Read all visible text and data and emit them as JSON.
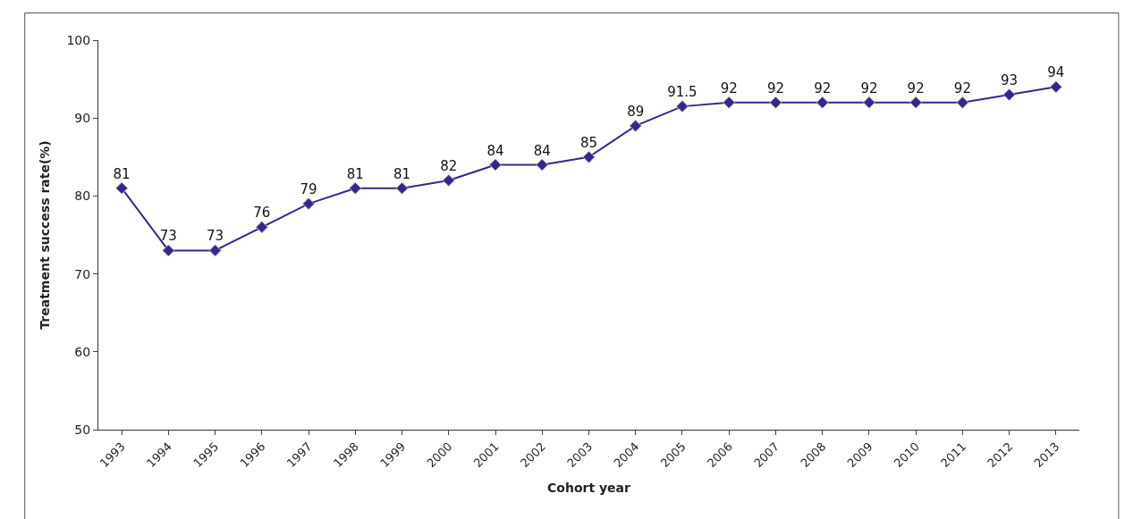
{
  "chart_data": {
    "type": "line",
    "xlabel": "Cohort year",
    "ylabel": "Treatment success rate(%)",
    "categories": [
      "1993",
      "1994",
      "1995",
      "1996",
      "1997",
      "1998",
      "1999",
      "2000",
      "2001",
      "2002",
      "2003",
      "2004",
      "2005",
      "2006",
      "2007",
      "2008",
      "2009",
      "2010",
      "2011",
      "2012",
      "2013"
    ],
    "series": [
      {
        "color": "#2b2b8f",
        "values": [
          81,
          73,
          73,
          76,
          79,
          81,
          81,
          82,
          84,
          84,
          85,
          89,
          91.5,
          92,
          92,
          92,
          92,
          92,
          92,
          93,
          94
        ]
      }
    ],
    "ylim": [
      50,
      100
    ],
    "yticks": [
      50,
      60,
      70,
      80,
      90,
      100
    ],
    "data_labels": true,
    "marker": "diamond",
    "line_style": "solid"
  }
}
